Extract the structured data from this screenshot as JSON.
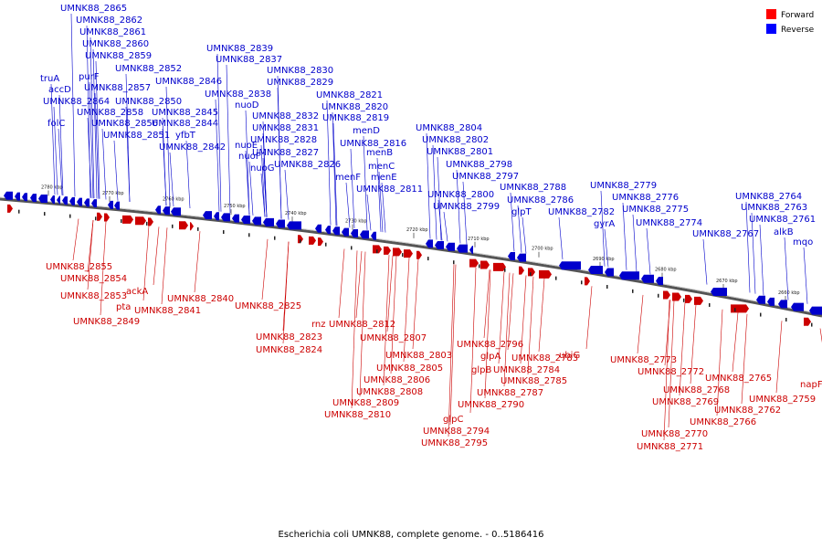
{
  "legend": {
    "forward": {
      "label": "Forward",
      "color": "#ff0000"
    },
    "reverse": {
      "label": "Reverse",
      "color": "#0000ff"
    }
  },
  "caption": "Escherichia coli UMNK88, complete genome. - 0..5186416",
  "tick_labels": [
    "2780 kbp",
    "2770 kbp",
    "2760 kbp",
    "2750 kbp",
    "2740 kbp",
    "2730 kbp",
    "2720 kbp",
    "2710 kbp",
    "2700 kbp",
    "2690 kbp",
    "2680 kbp",
    "2670 kbp",
    "2660 kbp"
  ],
  "reverse_labels": [
    "UMNK88_2865",
    "UMNK88_2862",
    "UMNK88_2861",
    "UMNK88_2860",
    "UMNK88_2859",
    "UMNK88_2852",
    "truA",
    "purF",
    "UMNK88_2846",
    "accD",
    "UMNK88_2857",
    "UMNK88_2864",
    "UMNK88_2850",
    "UMNK88_2858",
    "UMNK88_2845",
    "folC",
    "UMNK88_2856",
    "UMNK88_2844",
    "UMNK88_2851",
    "yfbT",
    "UMNK88_2842",
    "UMNK88_2839",
    "UMNK88_2837",
    "UMNK88_2830",
    "UMNK88_2829",
    "UMNK88_2838",
    "nuoD",
    "UMNK88_2832",
    "UMNK88_2831",
    "nuoE",
    "UMNK88_2828",
    "nuoF",
    "UMNK88_2827",
    "nuoG",
    "UMNK88_2826",
    "UMNK88_2821",
    "UMNK88_2820",
    "UMNK88_2819",
    "menD",
    "UMNK88_2816",
    "menB",
    "menC",
    "menF",
    "menE",
    "UMNK88_2811",
    "UMNK88_2804",
    "UMNK88_2802",
    "UMNK88_2801",
    "UMNK88_2798",
    "UMNK88_2797",
    "UMNK88_2788",
    "UMNK88_2800",
    "UMNK88_2786",
    "UMNK88_2799",
    "glpT",
    "UMNK88_2782",
    "UMNK88_2779",
    "UMNK88_2776",
    "UMNK88_2775",
    "gyrA",
    "UMNK88_2774",
    "UMNK88_2767",
    "UMNK88_2764",
    "UMNK88_2763",
    "UMNK88_2761",
    "alkB",
    "mqo"
  ],
  "forward_labels": [
    "UMNK88_2855",
    "UMNK88_2854",
    "UMNK88_2853",
    "ackA",
    "pta",
    "UMNK88_2849",
    "UMNK88_2840",
    "UMNK88_2841",
    "UMNK88_2825",
    "rnz",
    "UMNK88_2812",
    "UMNK88_2823",
    "UMNK88_2824",
    "UMNK88_2807",
    "UMNK88_2803",
    "UMNK88_2805",
    "UMNK88_2806",
    "UMNK88_2808",
    "UMNK88_2809",
    "UMNK88_2810",
    "UMNK88_2796",
    "glpA",
    "UMNK88_2784",
    "glpB",
    "UMNK88_2785",
    "UMNK88_2787",
    "UMNK88_2790",
    "glpC",
    "UMNK88_2794",
    "UMNK88_2795",
    "UMNK88_2783",
    "ubiG",
    "UMNK88_2773",
    "UMNK88_2772",
    "UMNK88_2768",
    "UMNK88_2769",
    "UMNK88_2770",
    "UMNK88_2771",
    "UMNK88_2765",
    "UMNK88_2766",
    "UMNK88_2762",
    "UMNK88_2759",
    "napF"
  ]
}
